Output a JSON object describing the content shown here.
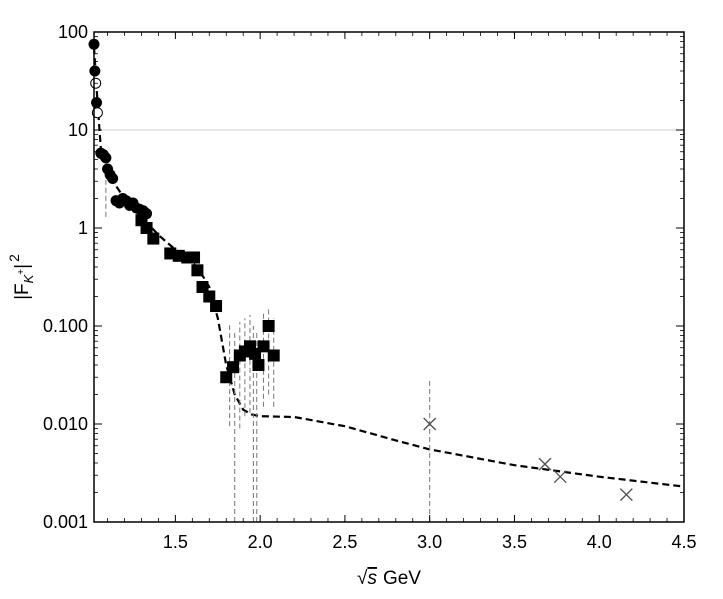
{
  "chart_data": {
    "type": "scatter",
    "title": "",
    "xlabel": "√s GeV",
    "ylabel": "|F_K+|^2",
    "ylabel_parts": {
      "base": "|F",
      "sub": "K",
      "sup_sub": "+",
      "close": "|",
      "power": "2"
    },
    "xlabel_parts": {
      "sqrt": "√",
      "var": "s",
      "unit": "GeV"
    },
    "x_scale": "linear",
    "y_scale": "log",
    "xlim": [
      1.02,
      4.5
    ],
    "ylim": [
      0.001,
      100
    ],
    "x_ticks": [
      {
        "value": 1.5,
        "label": "1.5"
      },
      {
        "value": 2.0,
        "label": "2.0"
      },
      {
        "value": 2.5,
        "label": "2.5"
      },
      {
        "value": 3.0,
        "label": "3.0"
      },
      {
        "value": 3.5,
        "label": "3.5"
      },
      {
        "value": 4.0,
        "label": "4.0"
      },
      {
        "value": 4.5,
        "label": "4.5"
      }
    ],
    "y_ticks": [
      {
        "value": 100,
        "label": "100"
      },
      {
        "value": 10,
        "label": "10"
      },
      {
        "value": 1,
        "label": "1"
      },
      {
        "value": 0.1,
        "label": "0.100"
      },
      {
        "value": 0.01,
        "label": "0.010"
      },
      {
        "value": 0.001,
        "label": "0.001"
      }
    ],
    "gridlines_y": [
      10
    ],
    "colors": {
      "marker": "#000000",
      "cross": "#555555",
      "errorbar": "#777777",
      "grid": "#cccccc",
      "curve": "#000000"
    },
    "series": [
      {
        "marker": "filled-circle",
        "points": [
          {
            "x": 1.02,
            "y": 75,
            "err": [
              60,
              90
            ]
          },
          {
            "x": 1.025,
            "y": 40
          },
          {
            "x": 1.035,
            "y": 19
          },
          {
            "x": 1.06,
            "y": 5.8
          },
          {
            "x": 1.075,
            "y": 5.6
          },
          {
            "x": 1.09,
            "y": 5.2
          },
          {
            "x": 1.1,
            "y": 4.0
          },
          {
            "x": 1.115,
            "y": 3.5
          },
          {
            "x": 1.13,
            "y": 3.2
          },
          {
            "x": 1.15,
            "y": 1.9
          },
          {
            "x": 1.17,
            "y": 1.8
          },
          {
            "x": 1.19,
            "y": 2.0
          },
          {
            "x": 1.21,
            "y": 1.9
          },
          {
            "x": 1.23,
            "y": 1.7
          },
          {
            "x": 1.25,
            "y": 1.8
          },
          {
            "x": 1.27,
            "y": 1.6
          },
          {
            "x": 1.29,
            "y": 1.55
          },
          {
            "x": 1.31,
            "y": 1.5
          },
          {
            "x": 1.33,
            "y": 1.4
          }
        ]
      },
      {
        "marker": "open-circle",
        "points": [
          {
            "x": 1.03,
            "y": 30
          },
          {
            "x": 1.04,
            "y": 15
          }
        ]
      },
      {
        "marker": "filled-square",
        "points": [
          {
            "x": 1.3,
            "y": 1.2
          },
          {
            "x": 1.33,
            "y": 1.0
          },
          {
            "x": 1.37,
            "y": 0.78
          },
          {
            "x": 1.47,
            "y": 0.55
          },
          {
            "x": 1.52,
            "y": 0.52
          },
          {
            "x": 1.57,
            "y": 0.5
          },
          {
            "x": 1.61,
            "y": 0.5
          },
          {
            "x": 1.63,
            "y": 0.37
          },
          {
            "x": 1.66,
            "y": 0.25
          },
          {
            "x": 1.7,
            "y": 0.2
          },
          {
            "x": 1.74,
            "y": 0.16
          },
          {
            "x": 1.8,
            "y": 0.03
          },
          {
            "x": 1.84,
            "y": 0.038
          },
          {
            "x": 1.88,
            "y": 0.05
          },
          {
            "x": 1.91,
            "y": 0.055
          },
          {
            "x": 1.94,
            "y": 0.062
          },
          {
            "x": 1.97,
            "y": 0.052
          },
          {
            "x": 1.99,
            "y": 0.04
          },
          {
            "x": 2.02,
            "y": 0.062
          },
          {
            "x": 2.05,
            "y": 0.1
          },
          {
            "x": 2.08,
            "y": 0.05
          }
        ]
      },
      {
        "marker": "cross",
        "points": [
          {
            "x": 3.0,
            "y": 0.01,
            "err": [
              0.001,
              0.028
            ]
          },
          {
            "x": 3.68,
            "y": 0.0039
          },
          {
            "x": 3.77,
            "y": 0.0029
          },
          {
            "x": 4.16,
            "y": 0.0019
          }
        ]
      }
    ],
    "error_bars": [
      {
        "x": 1.09,
        "y": [
          1.3,
          5.5
        ]
      },
      {
        "x": 1.82,
        "y": [
          0.0095,
          0.11
        ]
      },
      {
        "x": 1.85,
        "y": [
          0.001,
          0.09
        ]
      },
      {
        "x": 1.88,
        "y": [
          0.009,
          0.11
        ]
      },
      {
        "x": 1.91,
        "y": [
          0.012,
          0.12
        ]
      },
      {
        "x": 1.94,
        "y": [
          0.013,
          0.13
        ]
      },
      {
        "x": 1.96,
        "y": [
          0.001,
          0.1
        ]
      },
      {
        "x": 1.98,
        "y": [
          0.001,
          0.09
        ]
      },
      {
        "x": 2.02,
        "y": [
          0.015,
          0.14
        ]
      },
      {
        "x": 2.05,
        "y": [
          0.02,
          0.15
        ]
      },
      {
        "x": 2.08,
        "y": [
          0.015,
          0.12
        ]
      }
    ],
    "fit_curve": {
      "style": "dashed",
      "points": [
        [
          1.02,
          70
        ],
        [
          1.04,
          20
        ],
        [
          1.06,
          6.5
        ],
        [
          1.09,
          4.8
        ],
        [
          1.12,
          3.2
        ],
        [
          1.2,
          2.0
        ],
        [
          1.3,
          1.3
        ],
        [
          1.4,
          0.85
        ],
        [
          1.5,
          0.6
        ],
        [
          1.6,
          0.45
        ],
        [
          1.65,
          0.35
        ],
        [
          1.7,
          0.25
        ],
        [
          1.75,
          0.12
        ],
        [
          1.8,
          0.04
        ],
        [
          1.85,
          0.02
        ],
        [
          1.9,
          0.014
        ],
        [
          1.95,
          0.0125
        ],
        [
          2.0,
          0.012
        ],
        [
          2.2,
          0.0118
        ],
        [
          2.5,
          0.0095
        ],
        [
          2.8,
          0.0068
        ],
        [
          3.0,
          0.0055
        ],
        [
          3.5,
          0.0038
        ],
        [
          4.0,
          0.0029
        ],
        [
          4.5,
          0.0023
        ]
      ]
    }
  }
}
